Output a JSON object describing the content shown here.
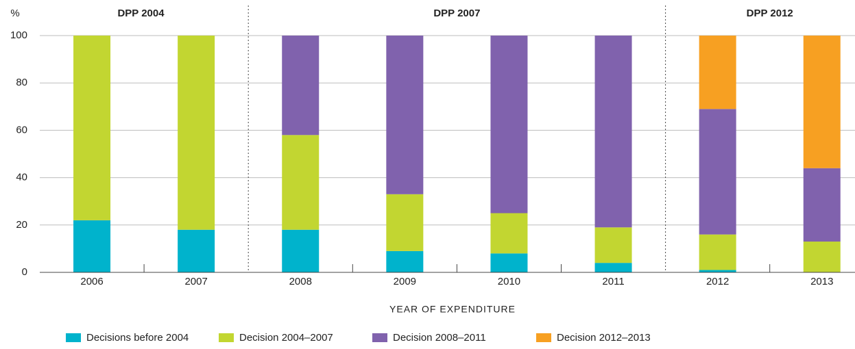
{
  "chart_data": {
    "type": "stacked_bar",
    "y_label": "%",
    "x_label": "YEAR OF EXPENDITURE",
    "groups": [
      "DPP 2004",
      "DPP 2007",
      "DPP 2012"
    ],
    "categories": [
      "2006",
      "2007",
      "2008",
      "2009",
      "2010",
      "2011",
      "2012",
      "2013"
    ],
    "series": [
      {
        "name": "Decisions before 2004",
        "color": "#00b3cc",
        "values": [
          22,
          18,
          18,
          9,
          8,
          4,
          1,
          0
        ]
      },
      {
        "name": "Decision 2004–2007",
        "color": "#c2d631",
        "values": [
          78,
          82,
          40,
          24,
          17,
          15,
          15,
          13
        ]
      },
      {
        "name": "Decision 2008–2011",
        "color": "#8062ad",
        "values": [
          0,
          0,
          42,
          67,
          75,
          81,
          53,
          31
        ]
      },
      {
        "name": "Decision 2012–2013",
        "color": "#f7a022",
        "values": [
          0,
          0,
          0,
          0,
          0,
          0,
          31,
          56
        ]
      }
    ],
    "ylim": [
      0,
      100
    ],
    "yticks": [
      0,
      20,
      40,
      60,
      80,
      100
    ],
    "grid": true
  }
}
